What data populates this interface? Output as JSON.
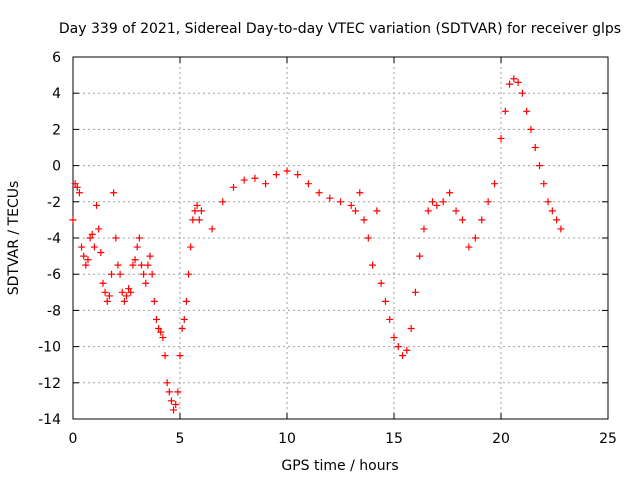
{
  "chart_data": {
    "type": "scatter",
    "title": "Day 339 of 2021, Sidereal Day-to-day VTEC variation (SDTVAR) for receiver glps",
    "xlabel": "GPS time / hours",
    "ylabel": "SDTVAR / TECUs",
    "xlim": [
      0,
      25
    ],
    "ylim": [
      -14,
      6
    ],
    "xticks": [
      0,
      5,
      10,
      15,
      20,
      25
    ],
    "yticks": [
      -14,
      -12,
      -10,
      -8,
      -6,
      -4,
      -2,
      0,
      2,
      4,
      6
    ],
    "grid": true,
    "marker": "+",
    "series": [
      {
        "name": "SDTVAR",
        "color": "#ff0000",
        "x": [
          0.0,
          0.1,
          0.2,
          0.3,
          0.4,
          0.5,
          0.6,
          0.7,
          0.8,
          0.9,
          1.0,
          1.1,
          1.2,
          1.3,
          1.4,
          1.5,
          1.6,
          1.7,
          1.8,
          1.9,
          2.0,
          2.1,
          2.2,
          2.3,
          2.4,
          2.5,
          2.6,
          2.7,
          2.8,
          2.9,
          3.0,
          3.1,
          3.2,
          3.3,
          3.4,
          3.5,
          3.6,
          3.7,
          3.8,
          3.9,
          4.0,
          4.1,
          4.2,
          4.3,
          4.4,
          4.5,
          4.6,
          4.7,
          4.8,
          4.9,
          5.0,
          5.1,
          5.2,
          5.3,
          5.4,
          5.5,
          5.6,
          5.7,
          5.8,
          5.9,
          6.0,
          6.5,
          7.0,
          7.5,
          8.0,
          8.5,
          9.0,
          9.5,
          10.0,
          10.5,
          11.0,
          11.5,
          12.0,
          12.5,
          13.0,
          13.2,
          13.4,
          13.6,
          13.8,
          14.0,
          14.2,
          14.4,
          14.6,
          14.8,
          15.0,
          15.2,
          15.4,
          15.6,
          15.8,
          16.0,
          16.2,
          16.4,
          16.6,
          16.8,
          17.0,
          17.3,
          17.6,
          17.9,
          18.2,
          18.5,
          18.8,
          19.1,
          19.4,
          19.7,
          20.0,
          20.2,
          20.4,
          20.6,
          20.8,
          21.0,
          21.2,
          21.4,
          21.6,
          21.8,
          22.0,
          22.2,
          22.4,
          22.6,
          22.8
        ],
        "y": [
          -3.0,
          -1.0,
          -1.2,
          -1.5,
          -4.5,
          -5.0,
          -5.5,
          -5.2,
          -4.0,
          -3.8,
          -4.5,
          -2.2,
          -3.5,
          -4.8,
          -6.5,
          -7.0,
          -7.5,
          -7.2,
          -6.0,
          -1.5,
          -4.0,
          -5.5,
          -6.0,
          -7.0,
          -7.5,
          -7.2,
          -6.8,
          -7.0,
          -5.5,
          -5.2,
          -4.5,
          -4.0,
          -5.5,
          -6.0,
          -6.5,
          -5.5,
          -5.0,
          -6.0,
          -7.5,
          -8.5,
          -9.0,
          -9.2,
          -9.5,
          -10.5,
          -12.0,
          -12.5,
          -13.0,
          -13.5,
          -13.2,
          -12.5,
          -10.5,
          -9.0,
          -8.5,
          -7.5,
          -6.0,
          -4.5,
          -3.0,
          -2.5,
          -2.2,
          -3.0,
          -2.5,
          -3.5,
          -2.0,
          -1.2,
          -0.8,
          -0.7,
          -1.0,
          -0.5,
          -0.3,
          -0.5,
          -1.0,
          -1.5,
          -1.8,
          -2.0,
          -2.2,
          -2.5,
          -1.5,
          -3.0,
          -4.0,
          -5.5,
          -2.5,
          -6.5,
          -7.5,
          -8.5,
          -9.5,
          -10.0,
          -10.5,
          -10.2,
          -9.0,
          -7.0,
          -5.0,
          -3.5,
          -2.5,
          -2.0,
          -2.2,
          -2.0,
          -1.5,
          -2.5,
          -3.0,
          -4.5,
          -4.0,
          -3.0,
          -2.0,
          -1.0,
          1.5,
          3.0,
          4.5,
          4.8,
          4.6,
          4.0,
          3.0,
          2.0,
          1.0,
          0.0,
          -1.0,
          -2.0,
          -2.5,
          -3.0,
          -3.5
        ]
      }
    ]
  }
}
